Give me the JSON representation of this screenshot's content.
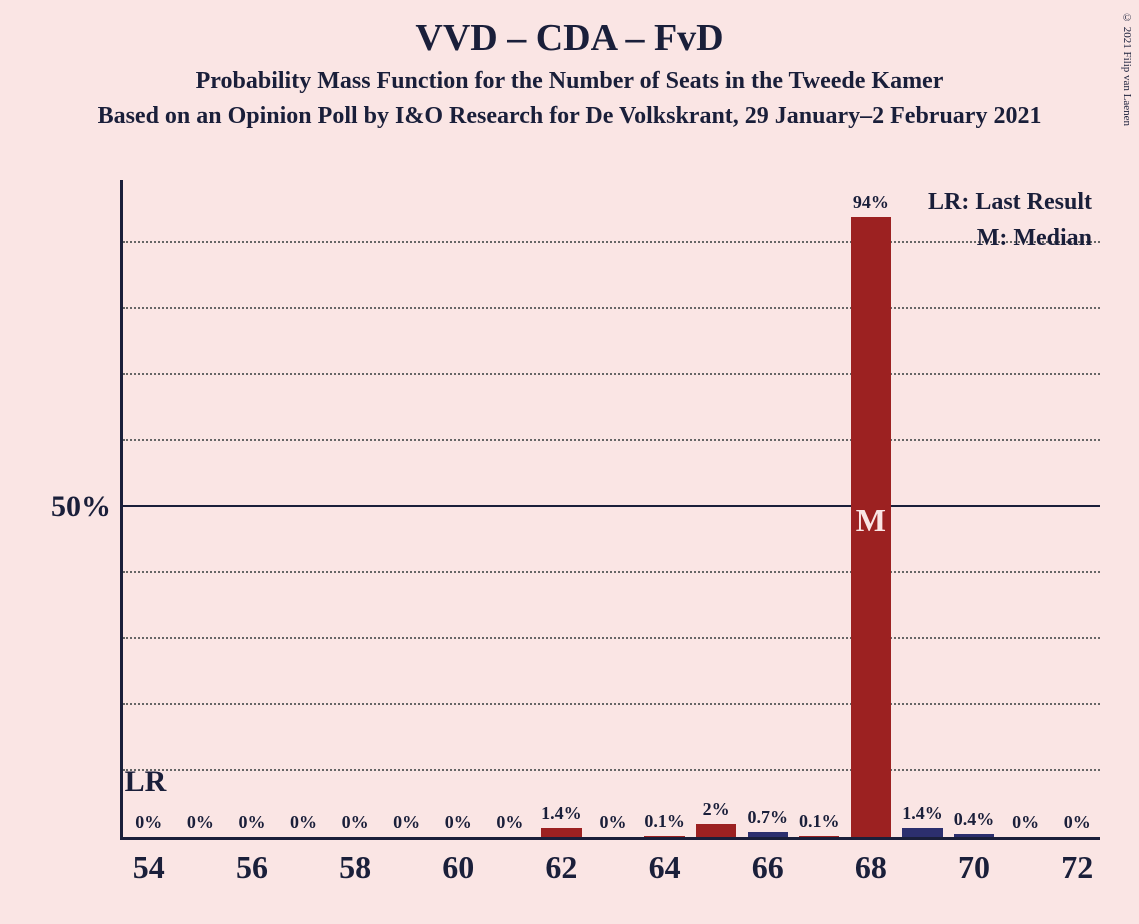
{
  "copyright": "© 2021 Filip van Laenen",
  "title": "VVD – CDA – FvD",
  "subtitle": "Probability Mass Function for the Number of Seats in the Tweede Kamer",
  "subtitle2": "Based on an Opinion Poll by I&O Research for De Volkskrant, 29 January–2 February 2021",
  "legend": {
    "lr": "LR: Last Result",
    "m": "M: Median"
  },
  "ylabel": "50%",
  "lr_marker": "LR",
  "chart": {
    "type": "bar",
    "background_color": "#fae5e4",
    "axis_color": "#1a1f3a",
    "grid_color": "#666666",
    "ylim": [
      0,
      100
    ],
    "ytick_major": 50,
    "ytick_minor": 10,
    "lr_seat": 54,
    "median_seat": 68,
    "bar_primary_color": "#9c2121",
    "bar_secondary_color": "#2c2f6e",
    "median_text_color": "#fae5e4",
    "median_text": "M",
    "x_ticks": [
      54,
      56,
      58,
      60,
      62,
      64,
      66,
      68,
      70,
      72
    ],
    "bars": [
      {
        "seat": 54,
        "label": "0%",
        "value": 0,
        "color": "#9c2121"
      },
      {
        "seat": 55,
        "label": "0%",
        "value": 0,
        "color": "#9c2121"
      },
      {
        "seat": 56,
        "label": "0%",
        "value": 0,
        "color": "#9c2121"
      },
      {
        "seat": 57,
        "label": "0%",
        "value": 0,
        "color": "#9c2121"
      },
      {
        "seat": 58,
        "label": "0%",
        "value": 0,
        "color": "#9c2121"
      },
      {
        "seat": 59,
        "label": "0%",
        "value": 0,
        "color": "#9c2121"
      },
      {
        "seat": 60,
        "label": "0%",
        "value": 0,
        "color": "#9c2121"
      },
      {
        "seat": 61,
        "label": "0%",
        "value": 0,
        "color": "#9c2121"
      },
      {
        "seat": 62,
        "label": "1.4%",
        "value": 1.4,
        "color": "#9c2121"
      },
      {
        "seat": 63,
        "label": "0%",
        "value": 0,
        "color": "#9c2121"
      },
      {
        "seat": 64,
        "label": "0.1%",
        "value": 0.1,
        "color": "#9c2121"
      },
      {
        "seat": 65,
        "label": "2%",
        "value": 2,
        "color": "#9c2121"
      },
      {
        "seat": 66,
        "label": "0.7%",
        "value": 0.7,
        "color": "#2c2f6e"
      },
      {
        "seat": 67,
        "label": "0.1%",
        "value": 0.1,
        "color": "#9c2121"
      },
      {
        "seat": 68,
        "label": "94%",
        "value": 94,
        "color": "#9c2121"
      },
      {
        "seat": 69,
        "label": "1.4%",
        "value": 1.4,
        "color": "#2c2f6e"
      },
      {
        "seat": 70,
        "label": "0.4%",
        "value": 0.4,
        "color": "#2c2f6e"
      },
      {
        "seat": 71,
        "label": "0%",
        "value": 0,
        "color": "#9c2121"
      },
      {
        "seat": 72,
        "label": "0%",
        "value": 0,
        "color": "#9c2121"
      }
    ]
  }
}
